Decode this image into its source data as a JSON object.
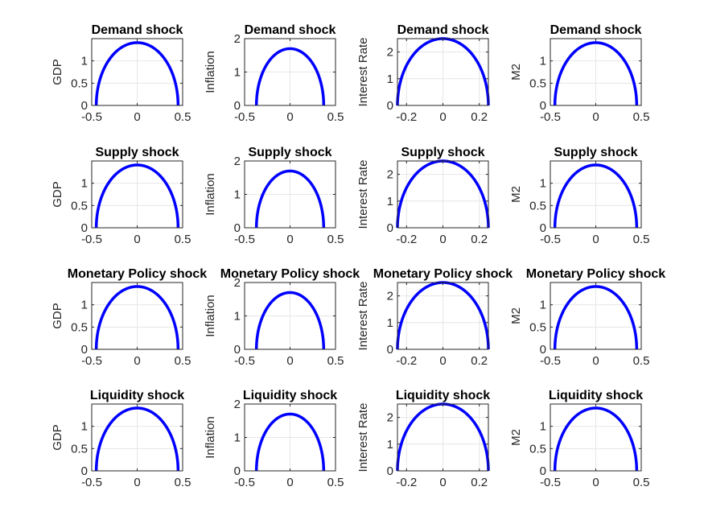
{
  "figure": {
    "background": "#ffffff",
    "line_color": "#0000ff",
    "grid_color": "#e6e6e6",
    "axis_color": "#262626"
  },
  "chart_data": [
    {
      "type": "line",
      "title": "Demand shock",
      "ylabel": "GDP",
      "xlim": [
        -0.5,
        0.5
      ],
      "ylim": [
        0,
        1.5
      ],
      "xticks": [
        -0.5,
        0,
        0.5
      ],
      "xtick_labels": [
        "-0.5",
        "0",
        "0.5"
      ],
      "yticks": [
        0,
        0.5,
        1
      ],
      "ytick_labels": [
        "0",
        "0.5",
        "1"
      ],
      "grid": true,
      "series": [
        {
          "shape": "semicircle",
          "center": 0,
          "half_width": 0.45,
          "peak": 1.41
        }
      ]
    },
    {
      "type": "line",
      "title": "Demand shock",
      "ylabel": "Inflation",
      "xlim": [
        -0.5,
        0.5
      ],
      "ylim": [
        0,
        2
      ],
      "xticks": [
        -0.5,
        0,
        0.5
      ],
      "xtick_labels": [
        "-0.5",
        "0",
        "0.5"
      ],
      "yticks": [
        0,
        1,
        2
      ],
      "ytick_labels": [
        "0",
        "1",
        "2"
      ],
      "grid": true,
      "series": [
        {
          "shape": "semicircle",
          "center": 0,
          "half_width": 0.37,
          "peak": 1.7
        }
      ]
    },
    {
      "type": "line",
      "title": "Demand shock",
      "ylabel": "Interest Rate",
      "xlim": [
        -0.25,
        0.25
      ],
      "ylim": [
        0,
        2.5
      ],
      "xticks": [
        -0.2,
        0,
        0.2
      ],
      "xtick_labels": [
        "-0.2",
        "0",
        "0.2"
      ],
      "yticks": [
        0,
        1,
        2
      ],
      "ytick_labels": [
        "0",
        "1",
        "2"
      ],
      "grid": true,
      "series": [
        {
          "shape": "semicircle",
          "center": 0,
          "half_width": 0.25,
          "peak": 2.5
        }
      ]
    },
    {
      "type": "line",
      "title": "Demand shock",
      "ylabel": "M2",
      "xlim": [
        -0.5,
        0.5
      ],
      "ylim": [
        0,
        1.5
      ],
      "xticks": [
        -0.5,
        0,
        0.5
      ],
      "xtick_labels": [
        "-0.5",
        "0",
        "0.5"
      ],
      "yticks": [
        0,
        0.5,
        1
      ],
      "ytick_labels": [
        "0",
        "0.5",
        "1"
      ],
      "grid": true,
      "series": [
        {
          "shape": "semicircle",
          "center": 0,
          "half_width": 0.45,
          "peak": 1.41
        }
      ]
    },
    {
      "type": "line",
      "title": "Supply shock",
      "ylabel": "GDP",
      "xlim": [
        -0.5,
        0.5
      ],
      "ylim": [
        0,
        1.5
      ],
      "xticks": [
        -0.5,
        0,
        0.5
      ],
      "xtick_labels": [
        "-0.5",
        "0",
        "0.5"
      ],
      "yticks": [
        0,
        0.5,
        1
      ],
      "ytick_labels": [
        "0",
        "0.5",
        "1"
      ],
      "grid": true,
      "series": [
        {
          "shape": "semicircle",
          "center": 0,
          "half_width": 0.45,
          "peak": 1.41
        }
      ]
    },
    {
      "type": "line",
      "title": "Supply shock",
      "ylabel": "Inflation",
      "xlim": [
        -0.5,
        0.5
      ],
      "ylim": [
        0,
        2
      ],
      "xticks": [
        -0.5,
        0,
        0.5
      ],
      "xtick_labels": [
        "-0.5",
        "0",
        "0.5"
      ],
      "yticks": [
        0,
        1,
        2
      ],
      "ytick_labels": [
        "0",
        "1",
        "2"
      ],
      "grid": true,
      "series": [
        {
          "shape": "semicircle",
          "center": 0,
          "half_width": 0.37,
          "peak": 1.7
        }
      ]
    },
    {
      "type": "line",
      "title": "Supply shock",
      "ylabel": "Interest Rate",
      "xlim": [
        -0.25,
        0.25
      ],
      "ylim": [
        0,
        2.5
      ],
      "xticks": [
        -0.2,
        0,
        0.2
      ],
      "xtick_labels": [
        "-0.2",
        "0",
        "0.2"
      ],
      "yticks": [
        0,
        1,
        2
      ],
      "ytick_labels": [
        "0",
        "1",
        "2"
      ],
      "grid": true,
      "series": [
        {
          "shape": "semicircle",
          "center": 0,
          "half_width": 0.25,
          "peak": 2.5
        }
      ]
    },
    {
      "type": "line",
      "title": "Supply shock",
      "ylabel": "M2",
      "xlim": [
        -0.5,
        0.5
      ],
      "ylim": [
        0,
        1.5
      ],
      "xticks": [
        -0.5,
        0,
        0.5
      ],
      "xtick_labels": [
        "-0.5",
        "0",
        "0.5"
      ],
      "yticks": [
        0,
        0.5,
        1
      ],
      "ytick_labels": [
        "0",
        "0.5",
        "1"
      ],
      "grid": true,
      "series": [
        {
          "shape": "semicircle",
          "center": 0,
          "half_width": 0.45,
          "peak": 1.41
        }
      ]
    },
    {
      "type": "line",
      "title": "Monetary Policy shock",
      "ylabel": "GDP",
      "xlim": [
        -0.5,
        0.5
      ],
      "ylim": [
        0,
        1.5
      ],
      "xticks": [
        -0.5,
        0,
        0.5
      ],
      "xtick_labels": [
        "-0.5",
        "0",
        "0.5"
      ],
      "yticks": [
        0,
        0.5,
        1
      ],
      "ytick_labels": [
        "0",
        "0.5",
        "1"
      ],
      "grid": true,
      "series": [
        {
          "shape": "semicircle",
          "center": 0,
          "half_width": 0.45,
          "peak": 1.41
        }
      ]
    },
    {
      "type": "line",
      "title": "Monetary Policy shock",
      "ylabel": "Inflation",
      "xlim": [
        -0.5,
        0.5
      ],
      "ylim": [
        0,
        2
      ],
      "xticks": [
        -0.5,
        0,
        0.5
      ],
      "xtick_labels": [
        "-0.5",
        "0",
        "0.5"
      ],
      "yticks": [
        0,
        1,
        2
      ],
      "ytick_labels": [
        "0",
        "1",
        "2"
      ],
      "grid": true,
      "series": [
        {
          "shape": "semicircle",
          "center": 0,
          "half_width": 0.37,
          "peak": 1.7
        }
      ]
    },
    {
      "type": "line",
      "title": "Monetary Policy shock",
      "ylabel": "Interest Rate",
      "xlim": [
        -0.25,
        0.25
      ],
      "ylim": [
        0,
        2.5
      ],
      "xticks": [
        -0.2,
        0,
        0.2
      ],
      "xtick_labels": [
        "-0.2",
        "0",
        "0.2"
      ],
      "yticks": [
        0,
        1,
        2
      ],
      "ytick_labels": [
        "0",
        "1",
        "2"
      ],
      "grid": true,
      "series": [
        {
          "shape": "semicircle",
          "center": 0,
          "half_width": 0.25,
          "peak": 2.5
        }
      ]
    },
    {
      "type": "line",
      "title": "Monetary Policy shock",
      "ylabel": "M2",
      "xlim": [
        -0.5,
        0.5
      ],
      "ylim": [
        0,
        1.5
      ],
      "xticks": [
        -0.5,
        0,
        0.5
      ],
      "xtick_labels": [
        "-0.5",
        "0",
        "0.5"
      ],
      "yticks": [
        0,
        0.5,
        1
      ],
      "ytick_labels": [
        "0",
        "0.5",
        "1"
      ],
      "grid": true,
      "series": [
        {
          "shape": "semicircle",
          "center": 0,
          "half_width": 0.45,
          "peak": 1.41
        }
      ]
    },
    {
      "type": "line",
      "title": "Liquidity shock",
      "ylabel": "GDP",
      "xlim": [
        -0.5,
        0.5
      ],
      "ylim": [
        0,
        1.5
      ],
      "xticks": [
        -0.5,
        0,
        0.5
      ],
      "xtick_labels": [
        "-0.5",
        "0",
        "0.5"
      ],
      "yticks": [
        0,
        0.5,
        1
      ],
      "ytick_labels": [
        "0",
        "0.5",
        "1"
      ],
      "grid": true,
      "series": [
        {
          "shape": "semicircle",
          "center": 0,
          "half_width": 0.45,
          "peak": 1.41
        }
      ]
    },
    {
      "type": "line",
      "title": "Liquidity shock",
      "ylabel": "Inflation",
      "xlim": [
        -0.5,
        0.5
      ],
      "ylim": [
        0,
        2
      ],
      "xticks": [
        -0.5,
        0,
        0.5
      ],
      "xtick_labels": [
        "-0.5",
        "0",
        "0.5"
      ],
      "yticks": [
        0,
        1,
        2
      ],
      "ytick_labels": [
        "0",
        "1",
        "2"
      ],
      "grid": true,
      "series": [
        {
          "shape": "semicircle",
          "center": 0,
          "half_width": 0.37,
          "peak": 1.7
        }
      ]
    },
    {
      "type": "line",
      "title": "Liquidity shock",
      "ylabel": "Interest Rate",
      "xlim": [
        -0.25,
        0.25
      ],
      "ylim": [
        0,
        2.5
      ],
      "xticks": [
        -0.2,
        0,
        0.2
      ],
      "xtick_labels": [
        "-0.2",
        "0",
        "0.2"
      ],
      "yticks": [
        0,
        1,
        2
      ],
      "ytick_labels": [
        "0",
        "1",
        "2"
      ],
      "grid": true,
      "series": [
        {
          "shape": "semicircle",
          "center": 0,
          "half_width": 0.25,
          "peak": 2.5
        }
      ]
    },
    {
      "type": "line",
      "title": "Liquidity shock",
      "ylabel": "M2",
      "xlim": [
        -0.5,
        0.5
      ],
      "ylim": [
        0,
        1.5
      ],
      "xticks": [
        -0.5,
        0,
        0.5
      ],
      "xtick_labels": [
        "-0.5",
        "0",
        "0.5"
      ],
      "yticks": [
        0,
        0.5,
        1
      ],
      "ytick_labels": [
        "0",
        "0.5",
        "1"
      ],
      "grid": true,
      "series": [
        {
          "shape": "semicircle",
          "center": 0,
          "half_width": 0.45,
          "peak": 1.41
        }
      ]
    }
  ]
}
